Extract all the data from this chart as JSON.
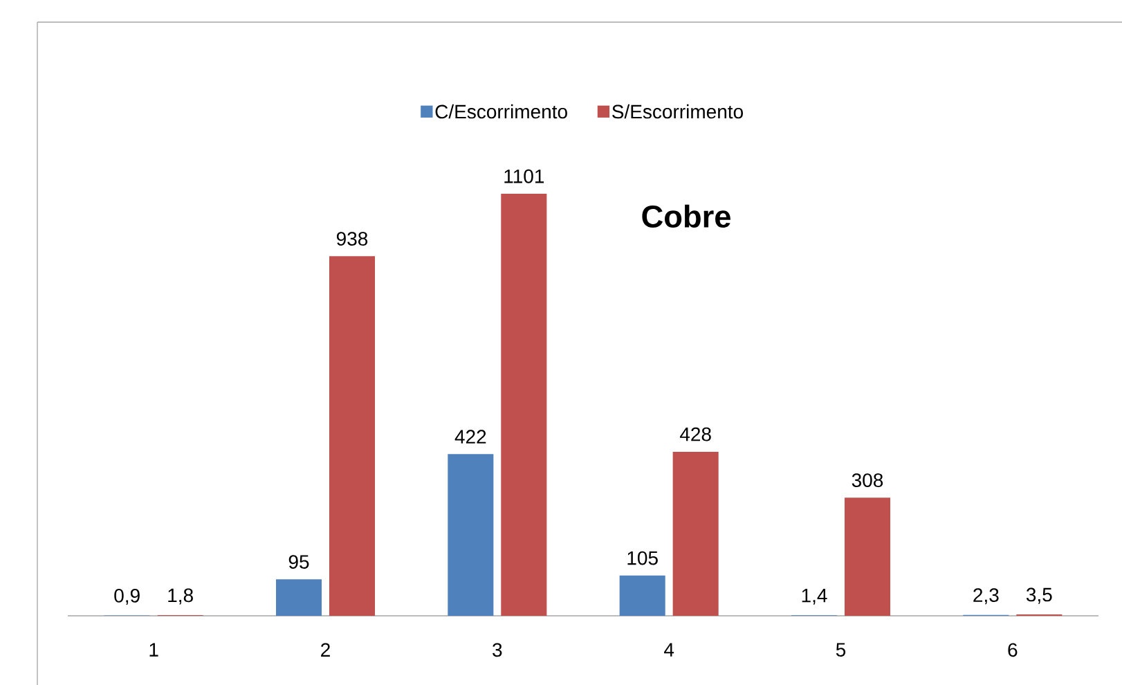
{
  "chart_data": {
    "type": "bar",
    "title": "Cobre",
    "categories": [
      "1",
      "2",
      "3",
      "4",
      "5",
      "6"
    ],
    "legend": "top",
    "tick_labels": "x",
    "series": [
      {
        "name": "C/Escorrimento",
        "color": "#4f81bd",
        "values": [
          0.9,
          95,
          422,
          105,
          1.4,
          2.3
        ],
        "value_labels": [
          "0,9",
          "95",
          "422",
          "105",
          "1,4",
          "2,3"
        ]
      },
      {
        "name": "S/Escorrimento",
        "color": "#c0504d",
        "values": [
          1.8,
          938,
          1101,
          428,
          308,
          3.5
        ],
        "value_labels": [
          "1,8",
          "938",
          "1101",
          "428",
          "308",
          "3,5"
        ]
      }
    ]
  }
}
